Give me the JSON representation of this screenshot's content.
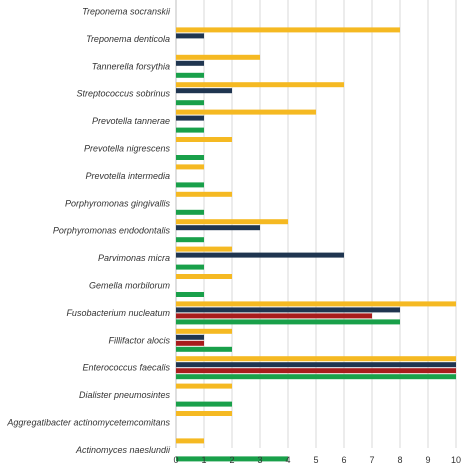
{
  "chart_data": {
    "type": "bar",
    "orientation": "horizontal",
    "categories": [
      "Treponema socranskii",
      "Treponema denticola",
      "Tannerella forsythia",
      "Streptococcus sobrinus",
      "Prevotella tannerae",
      "Prevotella nigrescens",
      "Prevotella intermedia",
      "Porphyromonas gingivallis",
      "Porphyromonas endodontalis",
      "Parvimonas micra",
      "Gemella morbilorum",
      "Fusobacterium nucleatum",
      "Fillifactor alocis",
      "Enterococcus faecalis",
      "Dialister pneumosintes",
      "Aggregatibacter actinomycetemcomitans",
      "Actinomyces naeslundii"
    ],
    "series": [
      {
        "color": "#f5b922",
        "values": [
          0,
          8,
          3,
          6,
          5,
          2,
          1,
          2,
          4,
          2,
          2,
          10,
          2,
          10,
          2,
          2,
          1
        ]
      },
      {
        "color": "#1f3550",
        "values": [
          0,
          1,
          1,
          2,
          1,
          0,
          0,
          0,
          3,
          6,
          0,
          8,
          1,
          10,
          0,
          0,
          0
        ]
      },
      {
        "color": "#a81c1c",
        "values": [
          0,
          0,
          0,
          0,
          0,
          0,
          0,
          0,
          0,
          0,
          0,
          7,
          1,
          10,
          0,
          0,
          0
        ]
      },
      {
        "color": "#19a04a",
        "values": [
          0,
          0,
          1,
          1,
          1,
          1,
          1,
          1,
          1,
          1,
          1,
          8,
          2,
          10,
          2,
          0,
          4
        ]
      }
    ],
    "xlim": [
      0,
      10
    ],
    "xticks": [
      "0",
      "1",
      "2",
      "3",
      "4",
      "5",
      "6",
      "7",
      "8",
      "9",
      "10"
    ],
    "grid": true,
    "legend": "none"
  }
}
